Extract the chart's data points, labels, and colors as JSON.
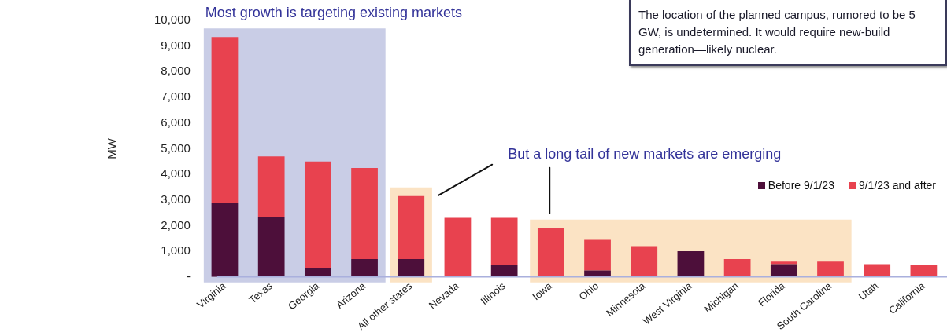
{
  "chart_data": {
    "type": "bar",
    "stacked": true,
    "ylabel": "MW",
    "categories": [
      "Virginia",
      "Texas",
      "Georgia",
      "Arizona",
      "All other states",
      "Nevada",
      "Illinois",
      "Iowa",
      "Ohio",
      "Minnesota",
      "West Virginia",
      "Michigan",
      "Florida",
      "South Carolina",
      "Utah",
      "California"
    ],
    "series": [
      {
        "name": "Before 9/1/23",
        "color": "#4d0f3a",
        "values": [
          2900,
          2350,
          350,
          700,
          700,
          0,
          450,
          0,
          250,
          0,
          1000,
          0,
          500,
          0,
          0,
          50
        ]
      },
      {
        "name": "9/1/23 and after",
        "color": "#e8424f",
        "values": [
          6450,
          2350,
          4150,
          3550,
          2450,
          2300,
          1850,
          1900,
          1200,
          1200,
          0,
          700,
          100,
          600,
          500,
          400
        ]
      }
    ],
    "ylim": [
      0,
      10000
    ],
    "yticks": [
      {
        "value": 0,
        "label": "-"
      },
      {
        "value": 1000,
        "label": "1,000"
      },
      {
        "value": 2000,
        "label": "2,000"
      },
      {
        "value": 3000,
        "label": "3,000"
      },
      {
        "value": 4000,
        "label": "4,000"
      },
      {
        "value": 5000,
        "label": "5,000"
      },
      {
        "value": 6000,
        "label": "6,000"
      },
      {
        "value": 7000,
        "label": "7,000"
      },
      {
        "value": 8000,
        "label": "8,000"
      },
      {
        "value": 9000,
        "label": "9,000"
      },
      {
        "value": 10000,
        "label": "10,000"
      }
    ],
    "bands": [
      {
        "axis": "x",
        "from": "Virginia",
        "to": "Arizona",
        "label": "Most growth is targeting existing markets",
        "color": "#c9cde6"
      },
      {
        "axis": "x",
        "from": "All other states",
        "to": "All other states",
        "color": "#fbe3c4"
      },
      {
        "axis": "x",
        "from": "Iowa",
        "to": "South Carolina",
        "label": "But a long tail of new markets are emerging",
        "color": "#fbe3c4"
      }
    ],
    "annotations": [
      "The location of the planned campus, rumored to be 5 GW, is undetermined. It would require new-build generation—likely nuclear."
    ],
    "grid": false,
    "legend": "right"
  }
}
